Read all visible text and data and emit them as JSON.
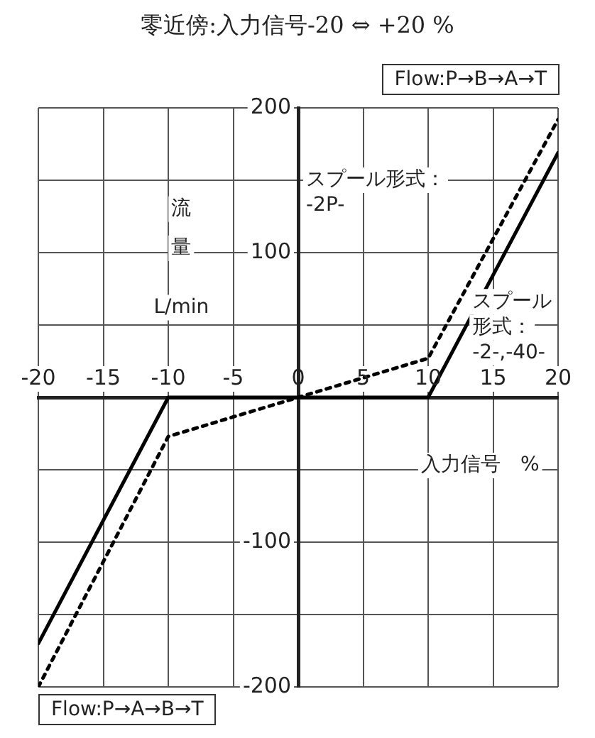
{
  "chart_data": {
    "type": "line",
    "title": "零近傍:入力信号-20 ⇔ +20 %",
    "xlabel": "入力信号　%",
    "ylabel": "流量L/min",
    "series": [
      {
        "name": "スプール形式：\n-2P-",
        "color": "#000000",
        "line_style": "dotted",
        "x": [
          -20,
          -10,
          10,
          20
        ],
        "values": [
          -200,
          -27,
          27,
          192
        ]
      },
      {
        "name": "スプール形式：\n-2-,-40-",
        "color": "#000000",
        "line_style": "solid",
        "x": [
          -20,
          -10,
          10,
          20
        ],
        "values": [
          -170,
          0,
          0,
          169
        ]
      }
    ],
    "xlim": [
      -20,
      20
    ],
    "xticks": [
      -20,
      -15,
      -10,
      -5,
      0,
      5,
      10,
      15,
      20
    ],
    "ylim": [
      -200,
      200
    ],
    "yticks": [
      -200,
      {
        "value": -150,
        "label": null
      },
      -100,
      {
        "value": -50,
        "label": null
      },
      {
        "value": 0,
        "label": null
      },
      {
        "value": 50,
        "label": null
      },
      100,
      {
        "value": 150,
        "label": null
      },
      200
    ],
    "grid": true,
    "legend": false,
    "marker": "none",
    "annotations": [
      "Flow:P→B→A→T",
      "Flow:P→A→B→T"
    ]
  }
}
